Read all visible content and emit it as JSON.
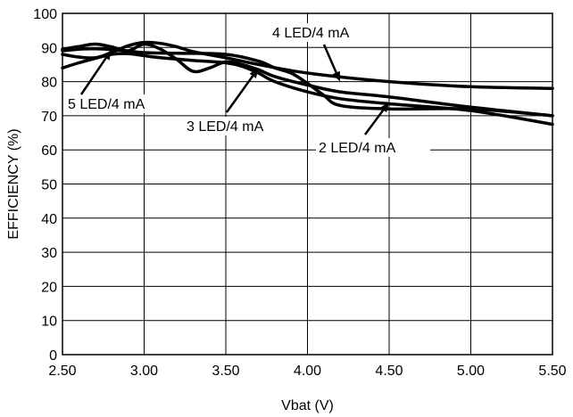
{
  "chart_data": {
    "type": "line",
    "xlabel": "Vbat (V)",
    "ylabel": "EFFICIENCY (%)",
    "xlim": [
      2.5,
      5.5
    ],
    "ylim": [
      0,
      100
    ],
    "xticks": [
      "2.50",
      "3.00",
      "3.50",
      "4.00",
      "4.50",
      "5.00",
      "5.50"
    ],
    "yticks": [
      "0",
      "10",
      "20",
      "30",
      "40",
      "50",
      "60",
      "70",
      "80",
      "90",
      "100"
    ],
    "grid": true,
    "series": [
      {
        "name": "5 LED/4 mA",
        "points": [
          [
            2.5,
            89.5
          ],
          [
            2.6,
            90.3
          ],
          [
            2.7,
            91.0
          ],
          [
            2.8,
            90.2
          ],
          [
            2.9,
            89.0
          ],
          [
            3.0,
            91.0
          ],
          [
            3.1,
            89.5
          ],
          [
            3.2,
            86.5
          ],
          [
            3.3,
            83.0
          ],
          [
            3.4,
            84.0
          ],
          [
            3.5,
            85.8
          ],
          [
            3.6,
            85.0
          ],
          [
            3.7,
            83.5
          ],
          [
            3.8,
            81.5
          ],
          [
            4.0,
            79.0
          ],
          [
            4.2,
            77.0
          ],
          [
            4.5,
            75.5
          ],
          [
            5.0,
            72.5
          ],
          [
            5.5,
            70.0
          ]
        ]
      },
      {
        "name": "4 LED/4 mA",
        "points": [
          [
            2.5,
            88.0
          ],
          [
            2.6,
            87.2
          ],
          [
            2.7,
            87.0
          ],
          [
            2.8,
            88.5
          ],
          [
            2.9,
            90.5
          ],
          [
            3.0,
            91.5
          ],
          [
            3.1,
            91.2
          ],
          [
            3.2,
            90.2
          ],
          [
            3.3,
            88.8
          ],
          [
            3.5,
            87.0
          ],
          [
            3.7,
            85.0
          ],
          [
            4.0,
            82.5
          ],
          [
            4.5,
            80.0
          ],
          [
            5.0,
            78.5
          ],
          [
            5.5,
            78.0
          ]
        ]
      },
      {
        "name": "3 LED/4 mA",
        "points": [
          [
            2.5,
            84.0
          ],
          [
            2.6,
            85.5
          ],
          [
            2.7,
            86.8
          ],
          [
            2.8,
            88.0
          ],
          [
            2.9,
            88.2
          ],
          [
            3.0,
            87.6
          ],
          [
            3.1,
            87.0
          ],
          [
            3.2,
            86.6
          ],
          [
            3.3,
            86.2
          ],
          [
            3.5,
            85.5
          ],
          [
            3.6,
            84.5
          ],
          [
            3.7,
            82.5
          ],
          [
            3.8,
            80.0
          ],
          [
            4.0,
            77.0
          ],
          [
            4.2,
            75.0
          ],
          [
            4.5,
            73.5
          ],
          [
            5.0,
            71.5
          ],
          [
            5.5,
            67.5
          ]
        ]
      },
      {
        "name": "2 LED/4 mA",
        "points": [
          [
            2.5,
            89.0
          ],
          [
            2.6,
            89.5
          ],
          [
            2.7,
            89.6
          ],
          [
            2.8,
            89.4
          ],
          [
            2.9,
            89.0
          ],
          [
            3.0,
            88.5
          ],
          [
            3.2,
            88.3
          ],
          [
            3.5,
            88.0
          ],
          [
            3.7,
            86.0
          ],
          [
            3.8,
            84.0
          ],
          [
            3.9,
            82.5
          ],
          [
            4.0,
            79.5
          ],
          [
            4.1,
            76.0
          ],
          [
            4.2,
            73.0
          ],
          [
            4.5,
            72.0
          ],
          [
            5.0,
            72.0
          ],
          [
            5.5,
            70.0
          ]
        ]
      }
    ],
    "annotations": [
      {
        "text": "4 LED/4 mA"
      },
      {
        "text": "5 LED/4 mA"
      },
      {
        "text": "3 LED/4 mA"
      },
      {
        "text": "2 LED/4 mA"
      }
    ]
  }
}
